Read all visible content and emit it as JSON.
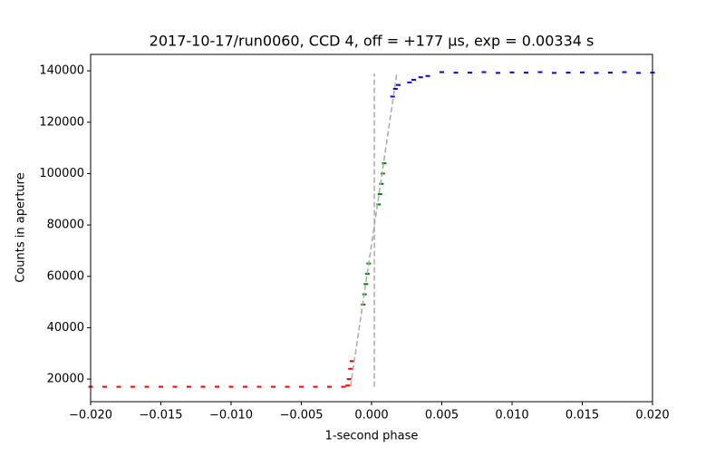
{
  "chart_data": {
    "type": "scatter",
    "title": "2017-10-17/run0060, CCD 4, off = +177 μs, exp = 0.00334 s",
    "x_label": "1-second phase",
    "y_label": "Counts in aperture",
    "xlim": [
      -0.02,
      0.02
    ],
    "ylim": [
      11200,
      146400
    ],
    "xticks": [
      {
        "value": -0.02,
        "label": "−0.020"
      },
      {
        "value": -0.015,
        "label": "−0.015"
      },
      {
        "value": -0.01,
        "label": "−0.010"
      },
      {
        "value": -0.005,
        "label": "−0.005"
      },
      {
        "value": 0,
        "label": "0.000"
      },
      {
        "value": 0.005,
        "label": "0.005"
      },
      {
        "value": 0.01,
        "label": "0.010"
      },
      {
        "value": 0.015,
        "label": "0.015"
      },
      {
        "value": 0.02,
        "label": "0.020"
      }
    ],
    "yticks": [
      20000,
      40000,
      60000,
      80000,
      100000,
      120000,
      140000
    ],
    "series": [
      {
        "color": "#ff0000",
        "style": "points",
        "x": [
          -0.02,
          -0.019,
          -0.018,
          -0.017,
          -0.016,
          -0.015,
          -0.014,
          -0.013,
          -0.012,
          -0.011,
          -0.01,
          -0.009,
          -0.008,
          -0.007,
          -0.006,
          -0.005,
          -0.004,
          -0.003,
          -0.002,
          -0.0017,
          -0.0016,
          -0.0015,
          -0.0014
        ],
        "values": [
          17000,
          17000,
          17000,
          17000,
          17000,
          17000,
          17000,
          17000,
          17000,
          17000,
          17000,
          17000,
          17000,
          17000,
          17000,
          17000,
          17000,
          17000,
          17000,
          17500,
          20000,
          24000,
          27000
        ]
      },
      {
        "color": "#008000",
        "style": "points",
        "x": [
          -0.0006,
          -0.0005,
          -0.0004,
          -0.0003,
          -0.0002,
          0.0005,
          0.0006,
          0.0007,
          0.0008,
          0.0009
        ],
        "values": [
          49000,
          53000,
          57000,
          61000,
          65000,
          88000,
          92000,
          96000,
          100000,
          104000
        ]
      },
      {
        "color": "#0000ff",
        "style": "points",
        "x": [
          0.0015,
          0.0017,
          0.0019,
          0.0027,
          0.003,
          0.0035,
          0.004,
          0.005,
          0.006,
          0.007,
          0.008,
          0.009,
          0.01,
          0.011,
          0.012,
          0.013,
          0.014,
          0.015,
          0.016,
          0.017,
          0.018,
          0.019,
          0.02
        ],
        "values": [
          130000,
          133000,
          134500,
          135500,
          136500,
          137500,
          138000,
          139500,
          139300,
          139300,
          139500,
          139200,
          139400,
          139300,
          139500,
          139200,
          139300,
          139400,
          139200,
          139300,
          139500,
          139200,
          139300
        ]
      },
      {
        "color": "#aaaaaa",
        "style": "dashed",
        "x": [
          0.0002,
          0.0002
        ],
        "values": [
          17000,
          139000
        ]
      },
      {
        "color": "#aaaaaa",
        "style": "dashed",
        "x": [
          -0.0015,
          0.0018
        ],
        "values": [
          17000,
          139000
        ]
      }
    ]
  }
}
